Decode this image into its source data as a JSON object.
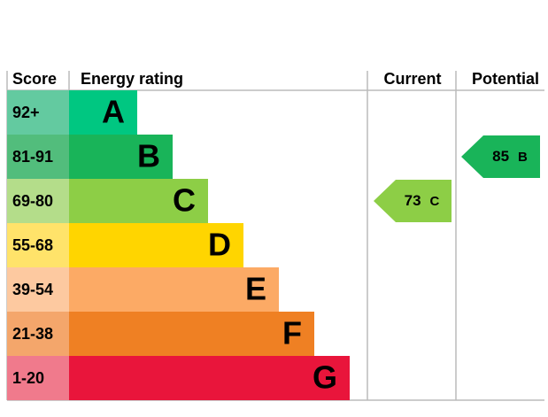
{
  "chart_data": {
    "type": "epc",
    "headers": {
      "score": "Score",
      "rating": "Energy rating",
      "current": "Current",
      "potential": "Potential"
    },
    "bands": [
      {
        "score": "92+",
        "letter": "A",
        "color": "#00c781",
        "score_color": "#63caa0"
      },
      {
        "score": "81-91",
        "letter": "B",
        "color": "#19b459",
        "score_color": "#52bd7c"
      },
      {
        "score": "69-80",
        "letter": "C",
        "color": "#8dce46",
        "score_color": "#b4dd8a"
      },
      {
        "score": "55-68",
        "letter": "D",
        "color": "#ffd500",
        "score_color": "#ffe36a"
      },
      {
        "score": "39-54",
        "letter": "E",
        "color": "#fcaa65",
        "score_color": "#fdc9a0"
      },
      {
        "score": "21-38",
        "letter": "F",
        "color": "#ef8023",
        "score_color": "#f4a66b"
      },
      {
        "score": "1-20",
        "letter": "G",
        "color": "#e9153b",
        "score_color": "#f07a8c"
      }
    ],
    "current": {
      "value": 73,
      "letter": "C"
    },
    "potential": {
      "value": 85,
      "letter": "B"
    }
  }
}
